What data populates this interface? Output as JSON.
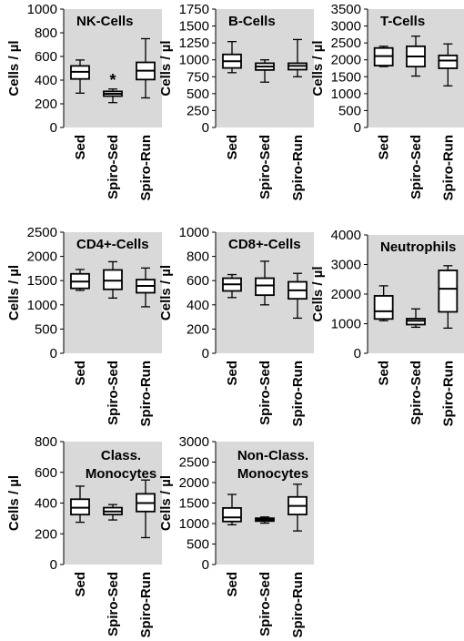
{
  "chart_data": [
    {
      "type": "boxplot",
      "title": "NK-Cells",
      "ylabel": "Cells / µl",
      "ylim": [
        0,
        1000
      ],
      "yticks": [
        "0",
        "200",
        "400",
        "600",
        "800",
        "1000"
      ],
      "categories": [
        "Sed",
        "Spiro-Sed",
        "Spiro-Run"
      ],
      "boxes": [
        {
          "min": 290,
          "q1": 410,
          "median": 470,
          "q3": 520,
          "max": 570
        },
        {
          "min": 210,
          "q1": 265,
          "median": 285,
          "q3": 305,
          "max": 325
        },
        {
          "min": 250,
          "q1": 405,
          "median": 480,
          "q3": 550,
          "max": 750
        }
      ],
      "annotations": [
        {
          "category": "Spiro-Sed",
          "text": "*"
        }
      ],
      "grid": false
    },
    {
      "type": "boxplot",
      "title": "B-Cells",
      "ylabel": "Cells / µl",
      "ylim": [
        0,
        1750
      ],
      "yticks": [
        "0",
        "250",
        "500",
        "750",
        "1000",
        "1250",
        "1500",
        "1750"
      ],
      "categories": [
        "Sed",
        "Spiro-Sed",
        "Spiro-Run"
      ],
      "boxes": [
        {
          "min": 810,
          "q1": 880,
          "median": 980,
          "q3": 1080,
          "max": 1270
        },
        {
          "min": 670,
          "q1": 850,
          "median": 900,
          "q3": 950,
          "max": 1000
        },
        {
          "min": 750,
          "q1": 855,
          "median": 910,
          "q3": 950,
          "max": 1300
        }
      ],
      "grid": false
    },
    {
      "type": "boxplot",
      "title": "T-Cells",
      "ylabel": "Cells / µl",
      "ylim": [
        0,
        3500
      ],
      "yticks": [
        "0",
        "500",
        "1000",
        "1500",
        "2000",
        "2500",
        "3000",
        "3500"
      ],
      "categories": [
        "Sed",
        "Spiro-Sed",
        "Spiro-Run"
      ],
      "boxes": [
        {
          "min": 1800,
          "q1": 1830,
          "median": 2110,
          "q3": 2350,
          "max": 2400
        },
        {
          "min": 1520,
          "q1": 1800,
          "median": 2100,
          "q3": 2400,
          "max": 2700
        },
        {
          "min": 1230,
          "q1": 1750,
          "median": 1980,
          "q3": 2130,
          "max": 2470
        }
      ],
      "grid": false
    },
    {
      "type": "boxplot",
      "title": "CD4+-Cells",
      "ylabel": "Cells / µl",
      "ylim": [
        0,
        2500
      ],
      "yticks": [
        "0",
        "500",
        "1000",
        "1500",
        "2000",
        "2500"
      ],
      "categories": [
        "Sed",
        "Spiro-Sed",
        "Spiro-Run"
      ],
      "boxes": [
        {
          "min": 1300,
          "q1": 1340,
          "median": 1480,
          "q3": 1640,
          "max": 1730
        },
        {
          "min": 1140,
          "q1": 1320,
          "median": 1500,
          "q3": 1720,
          "max": 1890
        },
        {
          "min": 960,
          "q1": 1250,
          "median": 1390,
          "q3": 1520,
          "max": 1760
        }
      ],
      "grid": false
    },
    {
      "type": "boxplot",
      "title": "CD8+-Cells",
      "ylabel": "Cells / µl",
      "ylim": [
        0,
        1000
      ],
      "yticks": [
        "0",
        "200",
        "400",
        "600",
        "800",
        "1000"
      ],
      "categories": [
        "Sed",
        "Spiro-Sed",
        "Spiro-Run"
      ],
      "boxes": [
        {
          "min": 460,
          "q1": 515,
          "median": 570,
          "q3": 620,
          "max": 650
        },
        {
          "min": 400,
          "q1": 480,
          "median": 560,
          "q3": 620,
          "max": 760
        },
        {
          "min": 290,
          "q1": 450,
          "median": 520,
          "q3": 590,
          "max": 660
        }
      ],
      "grid": false
    },
    {
      "type": "boxplot",
      "title": "Neutrophils",
      "ylabel": "Cells / µl",
      "ylim": [
        0,
        4000
      ],
      "yticks": [
        "0",
        "1000",
        "2000",
        "3000",
        "4000"
      ],
      "categories": [
        "Sed",
        "Spiro-Sed",
        "Spiro-Run"
      ],
      "boxes": [
        {
          "min": 1100,
          "q1": 1160,
          "median": 1420,
          "q3": 1940,
          "max": 2280
        },
        {
          "min": 880,
          "q1": 970,
          "median": 1100,
          "q3": 1170,
          "max": 1500
        },
        {
          "min": 850,
          "q1": 1400,
          "median": 2180,
          "q3": 2800,
          "max": 2960
        }
      ],
      "grid": false
    },
    {
      "type": "boxplot",
      "title": "Class. Monocytes",
      "title_lines": [
        "Class.",
        "Monocytes"
      ],
      "ylabel": "Cells / µl",
      "ylim": [
        0,
        800
      ],
      "yticks": [
        "0",
        "200",
        "400",
        "600",
        "800"
      ],
      "categories": [
        "Sed",
        "Spiro-Sed",
        "Spiro-Run"
      ],
      "boxes": [
        {
          "min": 275,
          "q1": 325,
          "median": 370,
          "q3": 425,
          "max": 510
        },
        {
          "min": 290,
          "q1": 325,
          "median": 345,
          "q3": 370,
          "max": 390
        },
        {
          "min": 175,
          "q1": 345,
          "median": 400,
          "q3": 460,
          "max": 550
        }
      ],
      "grid": false
    },
    {
      "type": "boxplot",
      "title": "Non-Class. Monocytes",
      "title_lines": [
        "Non-Class.",
        "Monocytes"
      ],
      "ylabel": "Cells / µl",
      "ylim": [
        0,
        3000
      ],
      "yticks": [
        "0",
        "500",
        "1000",
        "1500",
        "2000",
        "2500",
        "3000"
      ],
      "categories": [
        "Sed",
        "Spiro-Sed",
        "Spiro-Run"
      ],
      "boxes": [
        {
          "min": 970,
          "q1": 1050,
          "median": 1150,
          "q3": 1380,
          "max": 1710
        },
        {
          "min": 1010,
          "q1": 1060,
          "median": 1100,
          "q3": 1130,
          "max": 1160
        },
        {
          "min": 820,
          "q1": 1220,
          "median": 1430,
          "q3": 1650,
          "max": 1960
        }
      ],
      "grid": false
    }
  ],
  "colors": {
    "panel_background": "#d9d9d9",
    "box_fill": "#ffffff",
    "stroke": "#000000"
  }
}
